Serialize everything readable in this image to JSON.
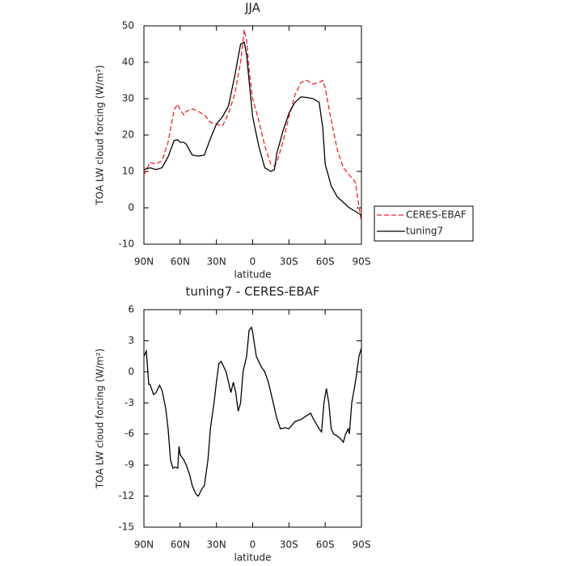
{
  "chart_data": [
    {
      "type": "line",
      "title": "JJA",
      "xlabel": "latitude",
      "ylabel": "TOA LW cloud forcing (W/m²)",
      "x": [
        90,
        85,
        80,
        75,
        70,
        65,
        62,
        60,
        57,
        55,
        50,
        45,
        40,
        35,
        30,
        25,
        20,
        15,
        10,
        7,
        5,
        3,
        0,
        -5,
        -10,
        -15,
        -18,
        -20,
        -25,
        -30,
        -35,
        -40,
        -45,
        -50,
        -55,
        -58,
        -60,
        -65,
        -70,
        -75,
        -80,
        -85,
        -90
      ],
      "series": [
        {
          "name": "CERES-EBAF",
          "color": "#e8262a",
          "dash": true,
          "values": [
            9,
            12.5,
            12,
            13,
            18,
            27,
            28.5,
            27,
            25.5,
            26.5,
            27.2,
            26.5,
            25.5,
            23.5,
            23,
            22.5,
            26,
            31,
            40,
            49,
            46,
            38,
            30,
            24,
            17,
            12,
            11.5,
            12.5,
            18,
            25,
            31,
            34.5,
            35,
            34,
            34.5,
            35,
            33,
            24,
            16,
            11,
            9,
            7,
            -4
          ]
        },
        {
          "name": "tuning7",
          "color": "#000000",
          "dash": false,
          "values": [
            10.5,
            11,
            10.5,
            11,
            14,
            18.5,
            18.7,
            18,
            18,
            17.5,
            14.5,
            14.2,
            14.5,
            19,
            23,
            25,
            28,
            36,
            45,
            45.5,
            42,
            35,
            25,
            17,
            11,
            10,
            10.5,
            15,
            21,
            26,
            29,
            30.5,
            30.3,
            30,
            29,
            22,
            12,
            6,
            3,
            1.5,
            0,
            -1,
            -2
          ]
        }
      ],
      "xlim": [
        90,
        -90
      ],
      "xticks": [
        {
          "value": 90,
          "label": "90N"
        },
        {
          "value": 60,
          "label": "60N"
        },
        {
          "value": 30,
          "label": "30N"
        },
        0,
        {
          "value": -30,
          "label": "30S"
        },
        {
          "value": -60,
          "label": "60S"
        },
        {
          "value": -90,
          "label": "90S"
        }
      ],
      "ylim": [
        -10,
        50
      ],
      "yticks": [
        -10,
        0,
        10,
        20,
        30,
        40,
        50
      ],
      "legend": "right"
    },
    {
      "type": "line",
      "title": "tuning7 - CERES-EBAF",
      "xlabel": "latitude",
      "ylabel": "TOA LW cloud forcing (W/m²)",
      "x": [
        90,
        88,
        86,
        85,
        82,
        80,
        77,
        75,
        72,
        70,
        68,
        66,
        64,
        62,
        61,
        60,
        57,
        55,
        52,
        50,
        47,
        45,
        42,
        40,
        37,
        35,
        32,
        30,
        28,
        26,
        24,
        22,
        20,
        18,
        16,
        14,
        12,
        10,
        8,
        5,
        3,
        1,
        0,
        -3,
        -7,
        -10,
        -13,
        -17,
        -20,
        -23,
        -27,
        -30,
        -35,
        -40,
        -45,
        -48,
        -50,
        -55,
        -57,
        -59,
        -61,
        -63,
        -65,
        -67,
        -70,
        -73,
        -75,
        -77,
        -79,
        -80,
        -82,
        -85,
        -88,
        -90
      ],
      "series": [
        {
          "color": "#000000",
          "dash": false,
          "values": [
            1.5,
            2,
            -1.2,
            -1.2,
            -2.2,
            -2,
            -1.3,
            -1.8,
            -3.5,
            -5.5,
            -8.5,
            -9.3,
            -9.2,
            -9.3,
            -7.2,
            -8,
            -8.5,
            -9,
            -10,
            -11,
            -11.8,
            -12,
            -11.3,
            -11,
            -8.5,
            -5.5,
            -3,
            -1,
            0.8,
            1,
            0.5,
            0,
            -1,
            -2,
            -1,
            -2,
            -3.8,
            -3,
            0,
            1.5,
            4,
            4.3,
            3.8,
            1.5,
            0.5,
            0,
            -1,
            -3,
            -4.5,
            -5.5,
            -5.4,
            -5.5,
            -4.8,
            -4.6,
            -4.2,
            -4,
            -4.5,
            -5.5,
            -5.8,
            -3,
            -1.6,
            -3,
            -5.5,
            -6,
            -6.2,
            -6.5,
            -6.8,
            -6,
            -5.5,
            -6,
            -3,
            -1,
            1.5,
            2.3
          ]
        }
      ],
      "xlim": [
        90,
        -90
      ],
      "xticks": [
        {
          "value": 90,
          "label": "90N"
        },
        {
          "value": 60,
          "label": "60N"
        },
        {
          "value": 30,
          "label": "30N"
        },
        0,
        {
          "value": -30,
          "label": "30S"
        },
        {
          "value": -60,
          "label": "60S"
        },
        {
          "value": -90,
          "label": "90S"
        }
      ],
      "ylim": [
        -15,
        6
      ],
      "yticks": [
        -15,
        -12,
        -9,
        -6,
        -3,
        0,
        3,
        6
      ]
    }
  ]
}
